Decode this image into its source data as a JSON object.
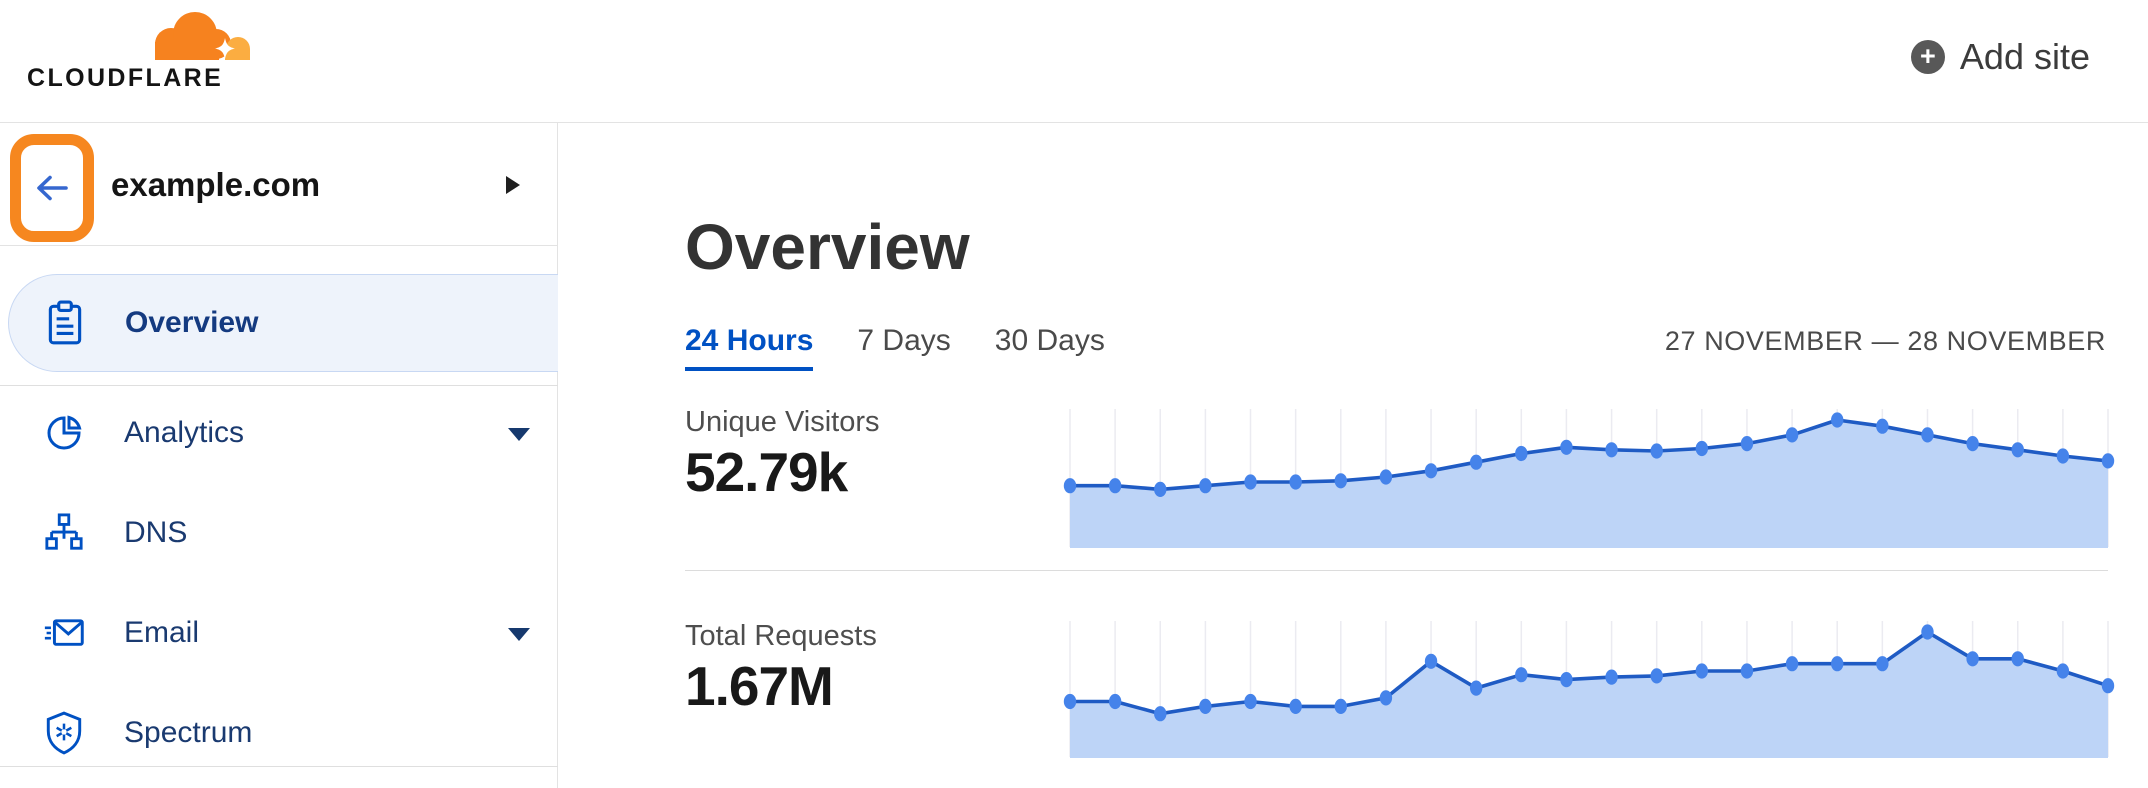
{
  "header": {
    "logo_text": "CLOUDFLARE",
    "add_site_label": "Add site"
  },
  "sidebar": {
    "site_name": "example.com",
    "items": [
      {
        "label": "Overview",
        "icon": "clipboard-icon",
        "active": true,
        "expandable": false
      },
      {
        "label": "Analytics",
        "icon": "pie-chart-icon",
        "active": false,
        "expandable": true
      },
      {
        "label": "DNS",
        "icon": "dns-tree-icon",
        "active": false,
        "expandable": false
      },
      {
        "label": "Email",
        "icon": "email-icon",
        "active": false,
        "expandable": true
      },
      {
        "label": "Spectrum",
        "icon": "shield-icon",
        "active": false,
        "expandable": false
      }
    ]
  },
  "main": {
    "title": "Overview",
    "tabs": [
      {
        "label": "24 Hours",
        "active": true
      },
      {
        "label": "7 Days",
        "active": false
      },
      {
        "label": "30 Days",
        "active": false
      }
    ],
    "date_range": "27 NOVEMBER — 28 NOVEMBER",
    "stats": [
      {
        "label": "Unique Visitors",
        "value": "52.79k"
      },
      {
        "label": "Total Requests",
        "value": "1.67M"
      }
    ]
  },
  "colors": {
    "brand_orange": "#f6821f",
    "brand_orange_light": "#fbad41",
    "annotation_orange": "#f6871f",
    "link_blue": "#0051c3",
    "sidebar_text_navy": "#1a3a70",
    "active_pill_bg": "#eef3fb",
    "chart_line": "#1f5bc4",
    "chart_fill": "#bdd4f7",
    "chart_dot": "#4583ea",
    "chart_grid": "#ebebf1"
  },
  "chart_data": [
    {
      "type": "area",
      "title": "Unique Visitors",
      "displayed_total": "52.79k",
      "x_description": "24 hourly points, 27 November — 28 November",
      "axes_hidden": true,
      "grid": "vertical lines at each point",
      "relative_values_pct_of_peak": [
        47,
        47,
        44,
        47,
        50,
        50,
        51,
        54,
        59,
        66,
        73,
        78,
        76,
        75,
        77,
        81,
        88,
        100,
        95,
        88,
        81,
        76,
        71,
        67
      ],
      "line_color": "#1f5bc4",
      "fill_color": "#bdd4f7",
      "dot_color": "#4583ea",
      "grid_color": "#ebebf1"
    },
    {
      "type": "area",
      "title": "Total Requests",
      "displayed_total": "1.67M",
      "x_description": "24 hourly points, 27 November — 28 November",
      "axes_hidden": true,
      "grid": "vertical lines at each point",
      "relative_values_pct_of_peak": [
        43,
        43,
        33,
        39,
        43,
        39,
        39,
        46,
        76,
        54,
        65,
        61,
        63,
        64,
        68,
        68,
        74,
        74,
        74,
        100,
        78,
        78,
        68,
        56
      ],
      "line_color": "#1f5bc4",
      "fill_color": "#bdd4f7",
      "dot_color": "#4583ea",
      "grid_color": "#ebebf1"
    }
  ]
}
